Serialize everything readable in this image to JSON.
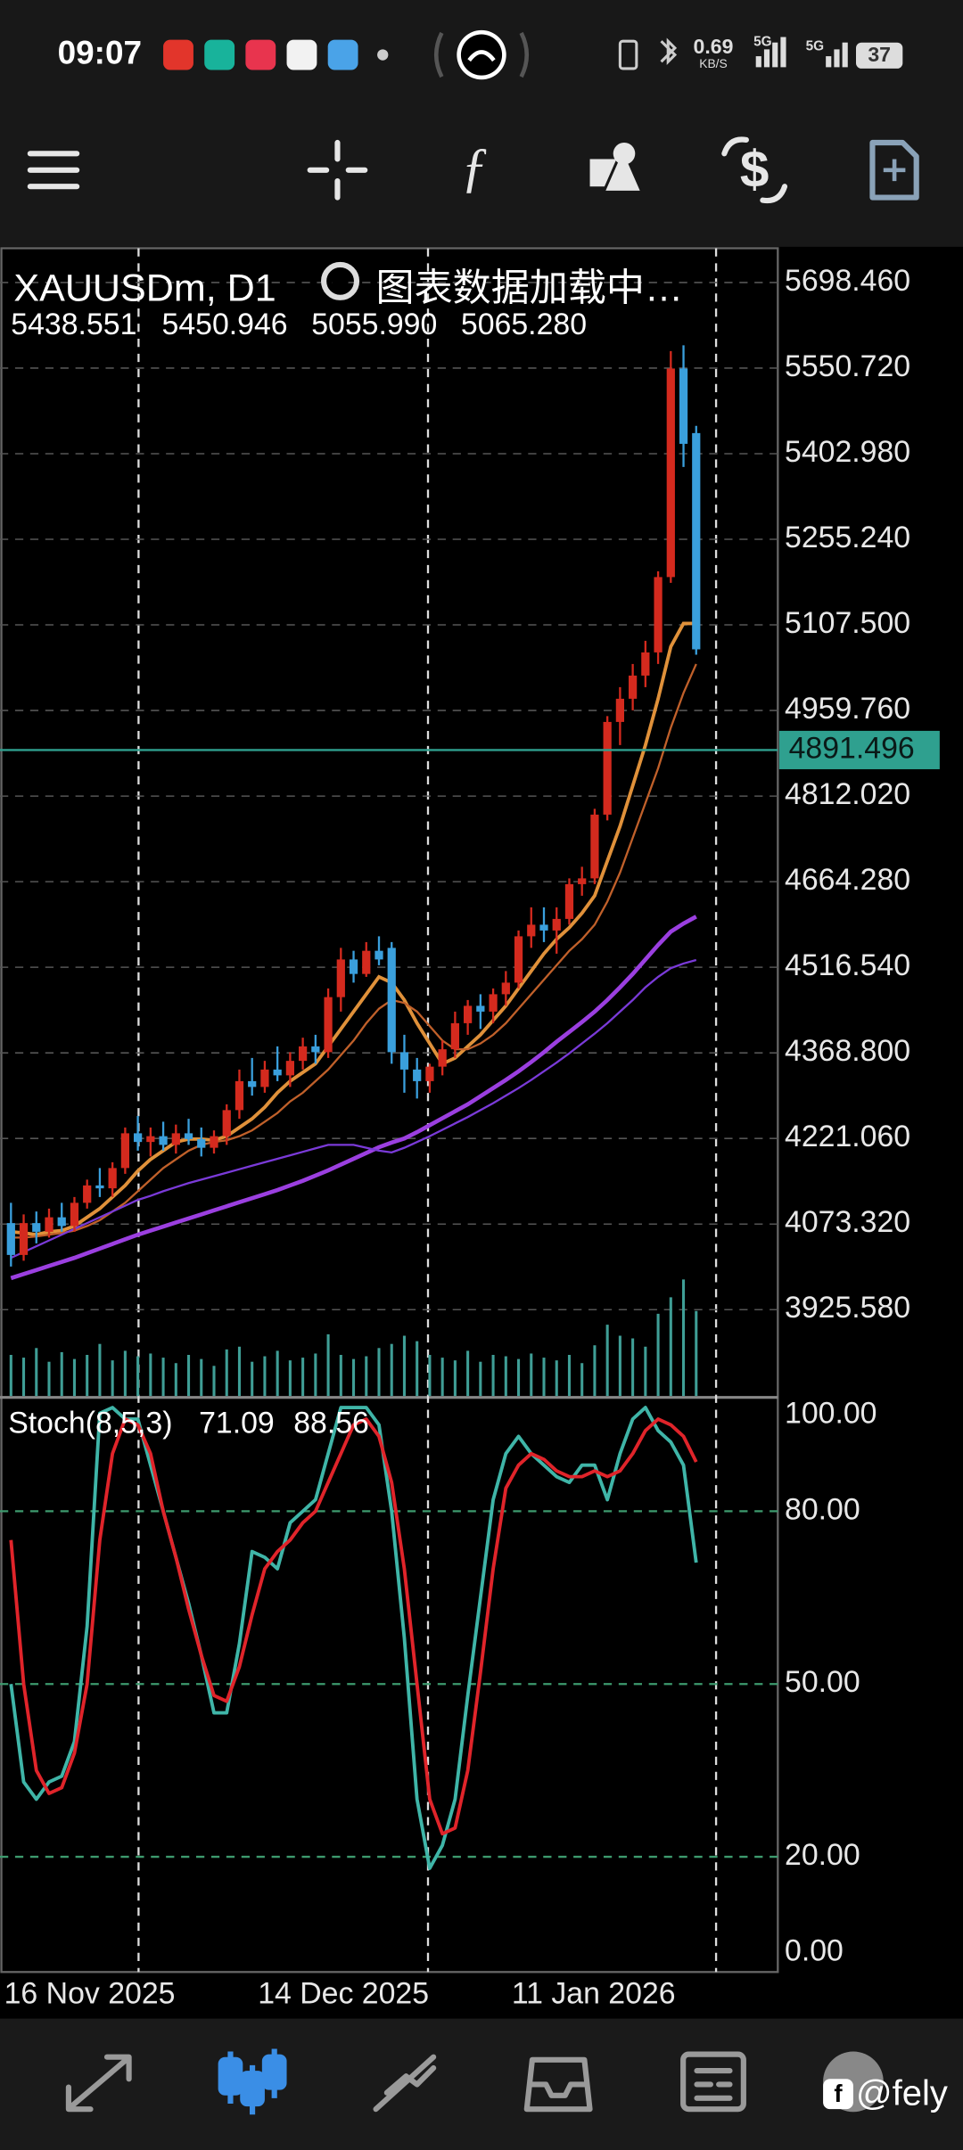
{
  "status_bar": {
    "time": "09:07",
    "net_speed": "0.69",
    "net_unit": "KB/S",
    "signal_1": "5G",
    "signal_2": "5G",
    "battery": "37"
  },
  "watermark": "@fely",
  "chart_data": [
    {
      "type": "candlestick",
      "title": "XAUUSDm, D1",
      "status": "图表数据加载中…",
      "ohlc_readout": [
        "5438.551",
        "5450.946",
        "5055.990",
        "5065.280"
      ],
      "categories": [
        "16 Nov 2025",
        null,
        null,
        null,
        null,
        null,
        null,
        null,
        null,
        null,
        null,
        null,
        null,
        null,
        null,
        null,
        null,
        null,
        null,
        null,
        "14 Dec 2025",
        null,
        null,
        null,
        null,
        null,
        null,
        null,
        null,
        null,
        null,
        null,
        null,
        null,
        null,
        null,
        null,
        null,
        null,
        null,
        "11 Jan 2026",
        null,
        null,
        null,
        null,
        null,
        null,
        null,
        null,
        null,
        null,
        null,
        null,
        null,
        null
      ],
      "open": [
        4075,
        4020,
        4075,
        4060,
        4085,
        4070,
        4110,
        4140,
        4135,
        4170,
        4230,
        4215,
        4225,
        4210,
        4230,
        4220,
        4205,
        4225,
        4270,
        4320,
        4310,
        4340,
        4330,
        4355,
        4380,
        4370,
        4465,
        4530,
        4505,
        4545,
        4550,
        4370,
        4340,
        4320,
        4345,
        4375,
        4420,
        4450,
        4440,
        4470,
        4490,
        4570,
        4590,
        4580,
        4600,
        4660,
        4670,
        4780,
        4940,
        4980,
        5020,
        5060,
        5190,
        5550,
        5438.551
      ],
      "high": [
        4110,
        4090,
        4095,
        4100,
        4110,
        4120,
        4150,
        4170,
        4180,
        4240,
        4260,
        4240,
        4250,
        4245,
        4255,
        4240,
        4235,
        4280,
        4340,
        4360,
        4355,
        4380,
        4370,
        4395,
        4400,
        4480,
        4550,
        4545,
        4560,
        4570,
        4560,
        4400,
        4360,
        4350,
        4390,
        4440,
        4460,
        4470,
        4480,
        4510,
        4580,
        4620,
        4620,
        4620,
        4670,
        4690,
        4790,
        4950,
        5000,
        5040,
        5080,
        5200,
        5580,
        5590,
        5450.946
      ],
      "low": [
        4000,
        4010,
        4040,
        4050,
        4060,
        4060,
        4100,
        4120,
        4120,
        4160,
        4200,
        4190,
        4200,
        4195,
        4210,
        4190,
        4195,
        4210,
        4255,
        4295,
        4300,
        4320,
        4310,
        4340,
        4350,
        4360,
        4440,
        4490,
        4500,
        4520,
        4350,
        4300,
        4290,
        4300,
        4330,
        4360,
        4400,
        4410,
        4420,
        4450,
        4480,
        4550,
        4560,
        4540,
        4590,
        4640,
        4660,
        4770,
        4900,
        4960,
        5000,
        5040,
        5180,
        5380,
        5055.99
      ],
      "close": [
        4020,
        4075,
        4060,
        4085,
        4070,
        4110,
        4140,
        4135,
        4170,
        4230,
        4215,
        4225,
        4210,
        4230,
        4220,
        4205,
        4225,
        4270,
        4320,
        4310,
        4340,
        4330,
        4355,
        4380,
        4370,
        4465,
        4530,
        4505,
        4545,
        4530,
        4370,
        4340,
        4320,
        4345,
        4375,
        4420,
        4450,
        4440,
        4470,
        4490,
        4570,
        4590,
        4580,
        4600,
        4660,
        4670,
        4780,
        4940,
        4980,
        5020,
        5060,
        5190,
        5550,
        5420,
        5065.28
      ],
      "volume": [
        30,
        28,
        35,
        25,
        32,
        27,
        30,
        38,
        26,
        33,
        29,
        31,
        28,
        24,
        30,
        27,
        22,
        34,
        36,
        25,
        29,
        33,
        26,
        28,
        31,
        45,
        30,
        27,
        29,
        35,
        38,
        44,
        40,
        30,
        28,
        26,
        33,
        25,
        30,
        29,
        27,
        31,
        28,
        26,
        30,
        24,
        37,
        52,
        44,
        42,
        36,
        60,
        72,
        85,
        62
      ],
      "up_color": "#d42a1e",
      "down_color": "#3a9fdc",
      "volume_color": "#3f9e96",
      "series": [
        {
          "color": "#e0913a",
          "values": [
            4060,
            4058,
            4055,
            4060,
            4062,
            4070,
            4085,
            4100,
            4120,
            4140,
            4165,
            4185,
            4200,
            4215,
            4220,
            4220,
            4218,
            4225,
            4240,
            4255,
            4275,
            4300,
            4320,
            4335,
            4350,
            4380,
            4410,
            4440,
            4470,
            4500,
            4490,
            4460,
            4420,
            4385,
            4350,
            4360,
            4380,
            4400,
            4425,
            4450,
            4480,
            4510,
            4540,
            4565,
            4585,
            4610,
            4640,
            4700,
            4760,
            4830,
            4900,
            4980,
            5070,
            5110,
            5110
          ]
        },
        {
          "color": "#c0602a",
          "values": [
            4050,
            4050,
            4052,
            4055,
            4058,
            4062,
            4070,
            4080,
            4095,
            4110,
            4130,
            4150,
            4170,
            4185,
            4200,
            4210,
            4215,
            4218,
            4225,
            4235,
            4250,
            4265,
            4285,
            4300,
            4320,
            4340,
            4365,
            4390,
            4420,
            4445,
            4460,
            4455,
            4440,
            4415,
            4390,
            4375,
            4375,
            4385,
            4400,
            4420,
            4445,
            4470,
            4495,
            4520,
            4545,
            4565,
            4590,
            4630,
            4680,
            4740,
            4800,
            4860,
            4930,
            4990,
            5040
          ]
        },
        {
          "color": "#9b3fe0",
          "values": [
            3980,
            3987,
            3994,
            4001,
            4008,
            4015,
            4023,
            4031,
            4039,
            4047,
            4055,
            4062,
            4069,
            4076,
            4083,
            4090,
            4097,
            4104,
            4111,
            4118,
            4125,
            4132,
            4140,
            4148,
            4157,
            4166,
            4176,
            4186,
            4196,
            4206,
            4214,
            4221,
            4232,
            4244,
            4256,
            4268,
            4280,
            4294,
            4308,
            4322,
            4337,
            4353,
            4370,
            4388,
            4405,
            4422,
            4440,
            4460,
            4482,
            4505,
            4530,
            4555,
            4578,
            4592,
            4604
          ]
        },
        {
          "color": "#7a3ad8",
          "values": [
            4015,
            4025,
            4035,
            4045,
            4055,
            4065,
            4075,
            4085,
            4095,
            4105,
            4115,
            4122,
            4130,
            4137,
            4144,
            4150,
            4156,
            4162,
            4168,
            4174,
            4180,
            4186,
            4192,
            4198,
            4204,
            4210,
            4210,
            4210,
            4205,
            4200,
            4197,
            4205,
            4215,
            4225,
            4236,
            4247,
            4258,
            4270,
            4282,
            4295,
            4308,
            4322,
            4337,
            4352,
            4368,
            4385,
            4402,
            4420,
            4440,
            4460,
            4482,
            4500,
            4515,
            4523,
            4529
          ]
        }
      ],
      "current_price": 4891.496,
      "current_price_color": "#2fa08f",
      "ylim": [
        3776.5,
        5760
      ],
      "yticks": [
        {
          "value": 5698.46,
          "label": "5698.460"
        },
        {
          "value": 5550.72,
          "label": "5550.720"
        },
        {
          "value": 5402.98,
          "label": "5402.980"
        },
        {
          "value": 5255.24,
          "label": "5255.240"
        },
        {
          "value": 5107.5,
          "label": "5107.500"
        },
        {
          "value": 4959.76,
          "label": "4959.760"
        },
        {
          "value": 4812.02,
          "label": "4812.020"
        },
        {
          "value": 4664.28,
          "label": "4664.280"
        },
        {
          "value": 4516.54,
          "label": "4516.540"
        },
        {
          "value": 4368.8,
          "label": "4368.800"
        },
        {
          "value": 4221.06,
          "label": "4221.060"
        },
        {
          "value": 4073.32,
          "label": "4073.320"
        },
        {
          "value": 3925.58,
          "label": "3925.580"
        }
      ],
      "grid": true
    },
    {
      "type": "line",
      "title": "Stoch(8,5,3)",
      "series": [
        {
          "color": "#3fb5a8",
          "values": [
            50,
            33,
            30,
            33,
            34,
            40,
            60,
            97,
            98,
            96,
            96,
            88,
            80,
            72,
            64,
            55,
            45,
            45,
            57,
            73,
            72,
            70,
            78,
            80,
            82,
            90,
            98,
            98,
            98,
            95,
            80,
            58,
            30,
            18,
            22,
            30,
            48,
            65,
            82,
            90,
            93,
            90,
            88,
            86,
            85,
            88,
            88,
            82,
            90,
            96,
            98,
            94,
            92,
            88,
            71.09
          ]
        },
        {
          "color": "#e0242a",
          "values": [
            75,
            50,
            35,
            31,
            32,
            38,
            50,
            75,
            90,
            96,
            95,
            90,
            80,
            72,
            63,
            55,
            48,
            47,
            53,
            62,
            70,
            73,
            75,
            78,
            80,
            85,
            90,
            95,
            96,
            93,
            85,
            70,
            50,
            30,
            24,
            25,
            35,
            52,
            70,
            84,
            88,
            90,
            89,
            87,
            86,
            86,
            87,
            86,
            87,
            90,
            94,
            96,
            95,
            93,
            88.56
          ]
        }
      ],
      "ylim": [
        0,
        100
      ],
      "yticks": [
        {
          "value": 0,
          "label": "0.00"
        },
        {
          "value": 20,
          "label": "20.00"
        },
        {
          "value": 50,
          "label": "50.00"
        },
        {
          "value": 80,
          "label": "80.00"
        },
        {
          "value": 100,
          "label": "100.00"
        }
      ],
      "grid": true,
      "grid_color": "#3d9a6e"
    }
  ]
}
